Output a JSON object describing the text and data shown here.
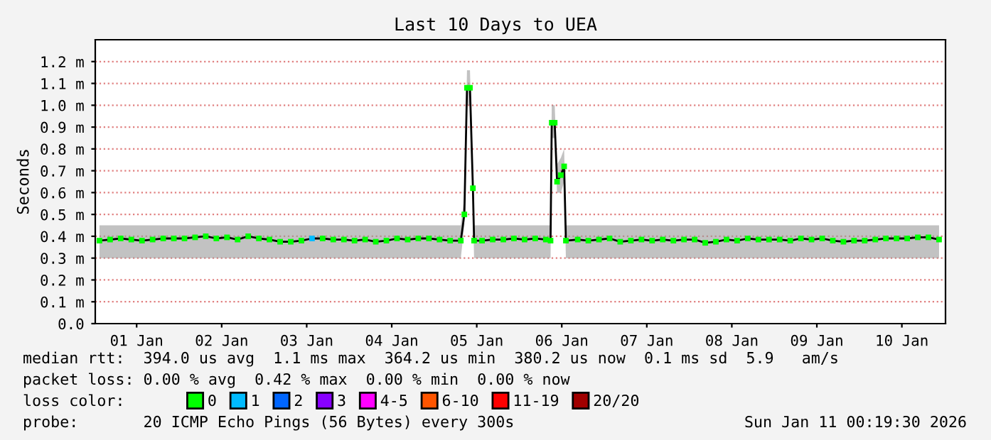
{
  "chart_data": {
    "type": "line",
    "title": "Last 10 Days to UEA",
    "ylabel": "Seconds",
    "x": [
      "2026-01-01T01:30",
      "2026-01-01T04:30",
      "2026-01-01T07:30",
      "2026-01-01T10:30",
      "2026-01-01T13:30",
      "2026-01-01T16:30",
      "2026-01-01T19:30",
      "2026-01-01T22:30",
      "2026-01-02T01:30",
      "2026-01-02T04:30",
      "2026-01-02T07:30",
      "2026-01-02T10:30",
      "2026-01-02T13:30",
      "2026-01-02T16:30",
      "2026-01-02T19:30",
      "2026-01-02T22:30",
      "2026-01-03T01:30",
      "2026-01-03T04:30",
      "2026-01-03T07:30",
      "2026-01-03T10:30",
      "2026-01-03T13:30",
      "2026-01-03T16:30",
      "2026-01-03T19:30",
      "2026-01-03T22:30",
      "2026-01-04T01:30",
      "2026-01-04T04:30",
      "2026-01-04T07:30",
      "2026-01-04T10:30",
      "2026-01-04T13:30",
      "2026-01-04T16:30",
      "2026-01-04T19:30",
      "2026-01-04T22:30",
      "2026-01-05T01:30",
      "2026-01-05T04:30",
      "2026-01-05T07:30",
      "2026-01-05T08:30",
      "2026-01-05T09:15",
      "2026-01-05T10:05",
      "2026-01-05T10:55",
      "2026-01-05T11:15",
      "2026-01-05T13:30",
      "2026-01-05T16:30",
      "2026-01-05T19:30",
      "2026-01-05T22:30",
      "2026-01-06T01:30",
      "2026-01-06T04:30",
      "2026-01-06T07:30",
      "2026-01-06T08:50",
      "2026-01-06T09:10",
      "2026-01-06T10:00",
      "2026-01-06T10:40",
      "2026-01-06T11:45",
      "2026-01-06T12:40",
      "2026-01-06T13:10",
      "2026-01-06T16:30",
      "2026-01-06T19:30",
      "2026-01-06T22:30",
      "2026-01-07T01:30",
      "2026-01-07T04:30",
      "2026-01-07T07:30",
      "2026-01-07T10:30",
      "2026-01-07T13:30",
      "2026-01-07T16:30",
      "2026-01-07T19:30",
      "2026-01-07T22:30",
      "2026-01-08T01:30",
      "2026-01-08T04:30",
      "2026-01-08T07:30",
      "2026-01-08T10:30",
      "2026-01-08T13:30",
      "2026-01-08T16:30",
      "2026-01-08T19:30",
      "2026-01-08T22:30",
      "2026-01-09T01:30",
      "2026-01-09T04:30",
      "2026-01-09T07:30",
      "2026-01-09T10:30",
      "2026-01-09T13:30",
      "2026-01-09T16:30",
      "2026-01-09T19:30",
      "2026-01-09T22:30",
      "2026-01-10T01:30",
      "2026-01-10T04:30",
      "2026-01-10T07:30",
      "2026-01-10T10:30",
      "2026-01-10T13:30",
      "2026-01-10T16:30",
      "2026-01-10T19:30",
      "2026-01-10T22:30"
    ],
    "series": [
      {
        "color": "#000000",
        "marker": "none",
        "values": [
          0.38,
          0.385,
          0.39,
          0.385,
          0.38,
          0.385,
          0.39,
          0.39,
          0.39,
          0.395,
          0.4,
          0.39,
          0.395,
          0.385,
          0.4,
          0.39,
          0.385,
          0.375,
          0.375,
          0.38,
          0.39,
          0.39,
          0.385,
          0.385,
          0.38,
          0.385,
          0.375,
          0.38,
          0.39,
          0.385,
          0.39,
          0.39,
          0.385,
          0.38,
          0.38,
          0.5,
          1.08,
          1.08,
          0.62,
          0.38,
          0.38,
          0.385,
          0.385,
          0.39,
          0.385,
          0.39,
          0.385,
          0.38,
          0.92,
          0.92,
          0.65,
          0.68,
          0.72,
          0.38,
          0.385,
          0.38,
          0.385,
          0.39,
          0.375,
          0.38,
          0.385,
          0.38,
          0.385,
          0.38,
          0.385,
          0.385,
          0.37,
          0.375,
          0.385,
          0.38,
          0.39,
          0.385,
          0.385,
          0.385,
          0.38,
          0.39,
          0.385,
          0.39,
          0.38,
          0.375,
          0.38,
          0.38,
          0.385,
          0.39,
          0.39,
          0.39,
          0.395,
          0.395,
          0.385
        ],
        "lower": [
          0.3,
          0.3,
          0.3,
          0.3,
          0.3,
          0.3,
          0.3,
          0.3,
          0.3,
          0.3,
          0.3,
          0.3,
          0.3,
          0.3,
          0.3,
          0.3,
          0.3,
          0.3,
          0.3,
          0.3,
          0.3,
          0.3,
          0.3,
          0.3,
          0.3,
          0.3,
          0.3,
          0.3,
          0.3,
          0.3,
          0.3,
          0.3,
          0.3,
          0.3,
          0.3,
          0.45,
          1.0,
          1.0,
          0.55,
          0.3,
          0.3,
          0.3,
          0.3,
          0.3,
          0.3,
          0.3,
          0.3,
          0.3,
          0.85,
          0.85,
          0.6,
          0.6,
          0.65,
          0.3,
          0.3,
          0.3,
          0.3,
          0.3,
          0.3,
          0.3,
          0.3,
          0.3,
          0.3,
          0.3,
          0.3,
          0.3,
          0.3,
          0.3,
          0.3,
          0.3,
          0.3,
          0.3,
          0.3,
          0.3,
          0.3,
          0.3,
          0.3,
          0.3,
          0.3,
          0.3,
          0.3,
          0.3,
          0.3,
          0.3,
          0.3,
          0.3,
          0.3,
          0.3,
          0.3
        ],
        "upper": [
          0.45,
          0.45,
          0.45,
          0.45,
          0.45,
          0.45,
          0.45,
          0.45,
          0.45,
          0.45,
          0.45,
          0.45,
          0.45,
          0.45,
          0.45,
          0.45,
          0.45,
          0.45,
          0.45,
          0.45,
          0.45,
          0.45,
          0.45,
          0.45,
          0.45,
          0.45,
          0.45,
          0.45,
          0.45,
          0.45,
          0.45,
          0.45,
          0.45,
          0.45,
          0.45,
          0.58,
          1.16,
          1.16,
          0.7,
          0.45,
          0.45,
          0.45,
          0.45,
          0.45,
          0.45,
          0.45,
          0.45,
          0.45,
          1.0,
          1.0,
          0.73,
          0.76,
          0.8,
          0.45,
          0.45,
          0.45,
          0.45,
          0.45,
          0.45,
          0.45,
          0.45,
          0.45,
          0.45,
          0.45,
          0.45,
          0.45,
          0.45,
          0.45,
          0.45,
          0.45,
          0.45,
          0.45,
          0.45,
          0.45,
          0.45,
          0.45,
          0.45,
          0.45,
          0.45,
          0.45,
          0.45,
          0.45,
          0.45,
          0.45,
          0.45,
          0.45,
          0.45,
          0.45,
          0.45
        ]
      },
      {
        "type": "scatter",
        "name": "0",
        "color": "#00ff00",
        "marker": "square",
        "values": [
          0.38,
          0.385,
          0.39,
          0.385,
          0.38,
          0.385,
          0.39,
          0.39,
          0.39,
          0.395,
          0.4,
          0.39,
          0.395,
          0.385,
          0.4,
          0.39,
          0.385,
          0.375,
          0.375,
          0.38,
          null,
          0.39,
          0.385,
          0.385,
          0.38,
          0.385,
          0.375,
          0.38,
          0.39,
          0.385,
          0.39,
          0.39,
          0.385,
          0.38,
          0.38,
          0.5,
          1.08,
          1.08,
          0.62,
          0.38,
          0.38,
          0.385,
          0.385,
          0.39,
          0.385,
          0.39,
          0.385,
          0.38,
          0.92,
          0.92,
          0.65,
          0.68,
          0.72,
          0.38,
          0.385,
          0.38,
          0.385,
          0.39,
          0.375,
          0.38,
          0.385,
          0.38,
          0.385,
          0.38,
          0.385,
          0.385,
          0.37,
          0.375,
          0.385,
          0.38,
          0.39,
          0.385,
          0.385,
          0.385,
          0.38,
          0.39,
          0.385,
          0.39,
          0.38,
          0.375,
          0.38,
          0.38,
          0.385,
          0.39,
          0.39,
          0.39,
          0.395,
          0.395,
          0.385
        ]
      },
      {
        "type": "scatter",
        "name": "1",
        "color": "#00bbff",
        "marker": "square",
        "x": [
          "2026-01-03T13:30"
        ],
        "values": [
          0.39
        ]
      },
      {
        "type": "scatter",
        "name": "2",
        "color": "#0066ff",
        "marker": "square",
        "values": [
          null,
          null,
          null,
          null,
          null,
          null,
          null,
          null,
          null,
          null,
          null,
          null,
          null,
          null,
          null,
          null,
          null,
          null,
          null,
          null,
          null,
          null,
          null,
          null,
          null,
          null,
          null,
          null,
          null,
          null,
          null,
          null,
          null,
          null,
          null,
          null,
          null,
          null,
          null,
          null,
          null,
          null,
          null,
          null,
          null,
          null,
          null,
          null,
          null,
          null,
          null,
          null,
          null,
          null,
          null,
          null,
          null,
          null,
          null,
          null,
          null,
          null,
          null,
          null,
          null,
          null,
          null,
          null,
          null,
          null,
          null,
          null,
          null,
          null,
          null,
          null,
          null,
          null,
          null,
          null,
          null,
          null,
          null,
          null,
          null,
          null,
          null,
          null,
          null
        ]
      },
      {
        "type": "scatter",
        "name": "3",
        "color": "#8800ff",
        "marker": "square",
        "values": [
          null,
          null,
          null,
          null,
          null,
          null,
          null,
          null,
          null,
          null,
          null,
          null,
          null,
          null,
          null,
          null,
          null,
          null,
          null,
          null,
          null,
          null,
          null,
          null,
          null,
          null,
          null,
          null,
          null,
          null,
          null,
          null,
          null,
          null,
          null,
          null,
          null,
          null,
          null,
          null,
          null,
          null,
          null,
          null,
          null,
          null,
          null,
          null,
          null,
          null,
          null,
          null,
          null,
          null,
          null,
          null,
          null,
          null,
          null,
          null,
          null,
          null,
          null,
          null,
          null,
          null,
          null,
          null,
          null,
          null,
          null,
          null,
          null,
          null,
          null,
          null,
          null,
          null,
          null,
          null,
          null,
          null,
          null,
          null,
          null,
          null,
          null,
          null,
          null
        ]
      },
      {
        "type": "scatter",
        "name": "4-5",
        "color": "#ff00ff",
        "marker": "square",
        "values": [
          null,
          null,
          null,
          null,
          null,
          null,
          null,
          null,
          null,
          null,
          null,
          null,
          null,
          null,
          null,
          null,
          null,
          null,
          null,
          null,
          null,
          null,
          null,
          null,
          null,
          null,
          null,
          null,
          null,
          null,
          null,
          null,
          null,
          null,
          null,
          null,
          null,
          null,
          null,
          null,
          null,
          null,
          null,
          null,
          null,
          null,
          null,
          null,
          null,
          null,
          null,
          null,
          null,
          null,
          null,
          null,
          null,
          null,
          null,
          null,
          null,
          null,
          null,
          null,
          null,
          null,
          null,
          null,
          null,
          null,
          null,
          null,
          null,
          null,
          null,
          null,
          null,
          null,
          null,
          null,
          null,
          null,
          null,
          null,
          null,
          null,
          null,
          null,
          null
        ]
      },
      {
        "type": "scatter",
        "name": "6-10",
        "color": "#ff5500",
        "marker": "square",
        "values": [
          null,
          null,
          null,
          null,
          null,
          null,
          null,
          null,
          null,
          null,
          null,
          null,
          null,
          null,
          null,
          null,
          null,
          null,
          null,
          null,
          null,
          null,
          null,
          null,
          null,
          null,
          null,
          null,
          null,
          null,
          null,
          null,
          null,
          null,
          null,
          null,
          null,
          null,
          null,
          null,
          null,
          null,
          null,
          null,
          null,
          null,
          null,
          null,
          null,
          null,
          null,
          null,
          null,
          null,
          null,
          null,
          null,
          null,
          null,
          null,
          null,
          null,
          null,
          null,
          null,
          null,
          null,
          null,
          null,
          null,
          null,
          null,
          null,
          null,
          null,
          null,
          null,
          null,
          null,
          null,
          null,
          null,
          null,
          null,
          null,
          null,
          null,
          null,
          null
        ]
      },
      {
        "type": "scatter",
        "name": "11-19",
        "color": "#ff0000",
        "marker": "square",
        "values": [
          null,
          null,
          null,
          null,
          null,
          null,
          null,
          null,
          null,
          null,
          null,
          null,
          null,
          null,
          null,
          null,
          null,
          null,
          null,
          null,
          null,
          null,
          null,
          null,
          null,
          null,
          null,
          null,
          null,
          null,
          null,
          null,
          null,
          null,
          null,
          null,
          null,
          null,
          null,
          null,
          null,
          null,
          null,
          null,
          null,
          null,
          null,
          null,
          null,
          null,
          null,
          null,
          null,
          null,
          null,
          null,
          null,
          null,
          null,
          null,
          null,
          null,
          null,
          null,
          null,
          null,
          null,
          null,
          null,
          null,
          null,
          null,
          null,
          null,
          null,
          null,
          null,
          null,
          null,
          null,
          null,
          null,
          null,
          null,
          null,
          null,
          null,
          null,
          null
        ]
      },
      {
        "type": "scatter",
        "name": "20/20",
        "color": "#a10000",
        "marker": "square",
        "values": [
          null,
          null,
          null,
          null,
          null,
          null,
          null,
          null,
          null,
          null,
          null,
          null,
          null,
          null,
          null,
          null,
          null,
          null,
          null,
          null,
          null,
          null,
          null,
          null,
          null,
          null,
          null,
          null,
          null,
          null,
          null,
          null,
          null,
          null,
          null,
          null,
          null,
          null,
          null,
          null,
          null,
          null,
          null,
          null,
          null,
          null,
          null,
          null,
          null,
          null,
          null,
          null,
          null,
          null,
          null,
          null,
          null,
          null,
          null,
          null,
          null,
          null,
          null,
          null,
          null,
          null,
          null,
          null,
          null,
          null,
          null,
          null,
          null,
          null,
          null,
          null,
          null,
          null,
          null,
          null,
          null,
          null,
          null,
          null,
          null,
          null,
          null,
          null,
          null
        ]
      }
    ],
    "legend": "bottom",
    "legend_title": "loss color:",
    "xlim": [
      "2026-01-01T00:19",
      "2026-01-11T00:19"
    ],
    "xticks": [
      {
        "value": "2026-01-01T12:00",
        "label": "01 Jan"
      },
      {
        "value": "2026-01-02T12:00",
        "label": "02 Jan"
      },
      {
        "value": "2026-01-03T12:00",
        "label": "03 Jan"
      },
      {
        "value": "2026-01-04T12:00",
        "label": "04 Jan"
      },
      {
        "value": "2026-01-05T12:00",
        "label": "05 Jan"
      },
      {
        "value": "2026-01-06T12:00",
        "label": "06 Jan"
      },
      {
        "value": "2026-01-07T12:00",
        "label": "07 Jan"
      },
      {
        "value": "2026-01-08T12:00",
        "label": "08 Jan"
      },
      {
        "value": "2026-01-09T12:00",
        "label": "09 Jan"
      },
      {
        "value": "2026-01-10T12:00",
        "label": "10 Jan"
      }
    ],
    "ylim": [
      0,
      1.3
    ],
    "yticks": [
      {
        "value": 0,
        "label": "0.0"
      },
      {
        "value": 0.1,
        "label": "0.1 m"
      },
      {
        "value": 0.2,
        "label": "0.2 m"
      },
      {
        "value": 0.3,
        "label": "0.3 m"
      },
      {
        "value": 0.4,
        "label": "0.4 m"
      },
      {
        "value": 0.5,
        "label": "0.5 m"
      },
      {
        "value": 0.6,
        "label": "0.6 m"
      },
      {
        "value": 0.7,
        "label": "0.7 m"
      },
      {
        "value": 0.8,
        "label": "0.8 m"
      },
      {
        "value": 0.9,
        "label": "0.9 m"
      },
      {
        "value": 1.0,
        "label": "1.0 m"
      },
      {
        "value": 1.1,
        "label": "1.1 m"
      },
      {
        "value": 1.2,
        "label": "1.2 m"
      }
    ],
    "grid": "y",
    "annotations": [
      "median rtt:  394.0 us avg  1.1 ms max  364.2 us min  380.2 us now  0.1 ms sd  5.9   am/s",
      "packet loss: 0.00 % avg  0.42 % max  0.00 % min  0.00 % now",
      "probe:       20 ICMP Echo Pings (56 Bytes) every 300s",
      "Sun Jan 11 00:19:30 2026"
    ]
  }
}
